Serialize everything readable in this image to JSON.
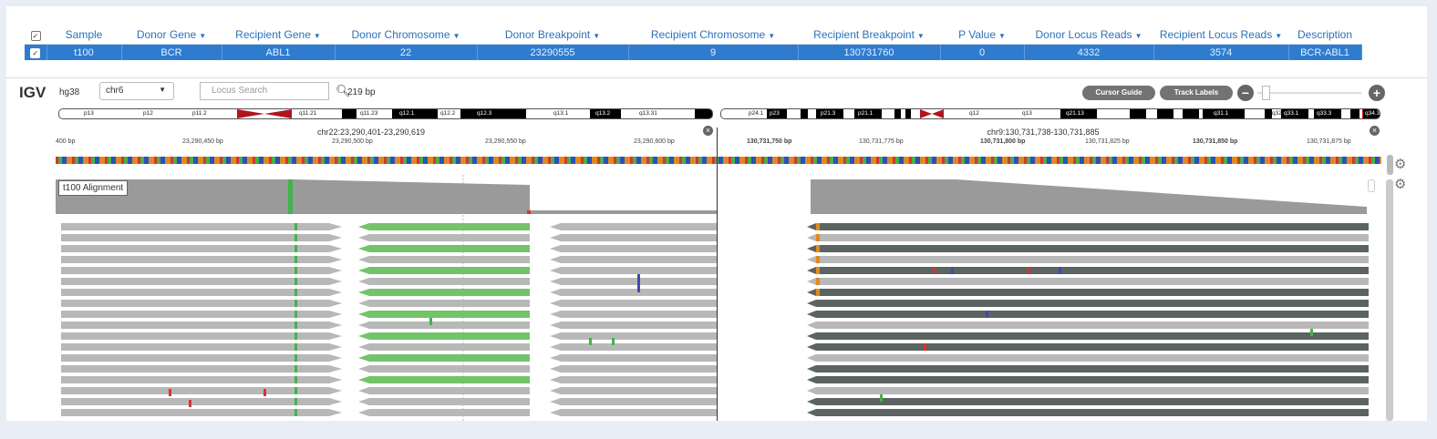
{
  "table": {
    "columns": [
      "Sample",
      "Donor Gene",
      "Recipient Gene",
      "Donor Chromosome",
      "Donor Breakpoint",
      "Recipient Chromosome",
      "Recipient Breakpoint",
      "P Value",
      "Donor Locus Reads",
      "Recipient Locus Reads",
      "Description"
    ],
    "filter_icon": "filter-icon",
    "row": [
      "t100",
      "BCR",
      "ABL1",
      "22",
      "23290555",
      "9",
      "130731760",
      "0",
      "4332",
      "3574",
      "BCR-ABL1"
    ]
  },
  "igv": {
    "logo": "IGV",
    "genome": "hg38",
    "chromosome": "chr6",
    "locus_placeholder": "Locus Search",
    "bp_width": "219 bp",
    "cursor_guide": "Cursor Guide",
    "track_labels": "Track Labels",
    "zoom_out": "−",
    "zoom_in": "+",
    "left": {
      "locus": "chr22:23,290,401-23,290,619",
      "ruler": [
        "400 bp",
        "23,290,450 bp",
        "23,290,500 bp",
        "23,290,550 bp",
        "23,290,600 bp"
      ],
      "bands": [
        "p13",
        "p12",
        "p11.2",
        "q11.21",
        "q11.23",
        "q12.1",
        "q12.2",
        "q12.3",
        "q13.1",
        "q13.2",
        "q13.31"
      ]
    },
    "right": {
      "locus": "chr9:130,731,738-130,731,885",
      "ruler": [
        "130,731,750 bp",
        "130,731,775 bp",
        "130,731,800 bp",
        "130,731,825 bp",
        "130,731,850 bp",
        "130,731,875 bp"
      ],
      "bands": [
        "p24.1",
        "p23",
        "p21.3",
        "p21.1",
        "q12",
        "q13",
        "q21.13",
        "q31.1",
        "q32",
        "q33.1",
        "q33.3",
        "q34.3"
      ]
    },
    "track_name": "t100 Alignment"
  },
  "colors": {
    "header_text": "#2c72b6",
    "row_bg": "#2f7ccf",
    "read_light": "#b8b8b8",
    "read_dark": "#5b6460",
    "read_green": "#74c36a"
  }
}
